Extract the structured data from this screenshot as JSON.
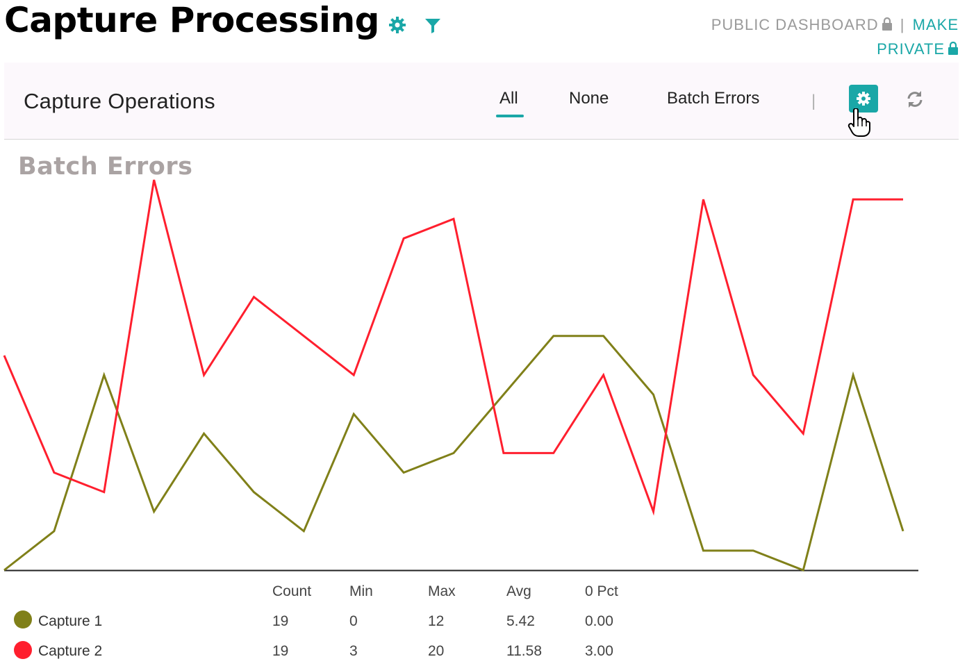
{
  "header": {
    "title": "Capture Processing",
    "public_label": "PUBLIC DASHBOARD",
    "separator": "|",
    "make_private_label": "MAKE PRIVATE"
  },
  "panel": {
    "title": "Capture Operations",
    "tabs": [
      {
        "label": "All",
        "active": true
      },
      {
        "label": "None",
        "active": false
      },
      {
        "label": "Batch Errors",
        "active": false
      }
    ],
    "divider": "|",
    "icons": [
      "gear-icon",
      "refresh-icon"
    ]
  },
  "colors": {
    "accent": "#1aa7a7",
    "capture1": "#808019",
    "capture2": "#ff1f2e"
  },
  "chart_data": {
    "type": "line",
    "title": "Batch Errors",
    "x": [
      1,
      2,
      3,
      4,
      5,
      6,
      7,
      8,
      9,
      10,
      11,
      12,
      13,
      14,
      15,
      16,
      17,
      18,
      19
    ],
    "ylim": [
      0,
      20
    ],
    "series": [
      {
        "name": "Capture 1",
        "values": [
          0,
          2,
          10,
          3,
          7,
          4,
          2,
          8,
          5,
          6,
          9,
          12,
          12,
          9,
          1,
          1,
          0,
          10,
          2
        ]
      },
      {
        "name": "Capture 2",
        "values": [
          11,
          5,
          4,
          20,
          10,
          14,
          12,
          10,
          17,
          18,
          6,
          6,
          10,
          3,
          19,
          10,
          7,
          19,
          19
        ]
      }
    ]
  },
  "stats": {
    "headers": [
      "Count",
      "Min",
      "Max",
      "Avg",
      "0 Pct"
    ],
    "rows": [
      {
        "name": "Capture 1",
        "values": [
          "19",
          "0",
          "12",
          "5.42",
          "0.00"
        ]
      },
      {
        "name": "Capture 2",
        "values": [
          "19",
          "3",
          "20",
          "11.58",
          "3.00"
        ]
      }
    ]
  }
}
